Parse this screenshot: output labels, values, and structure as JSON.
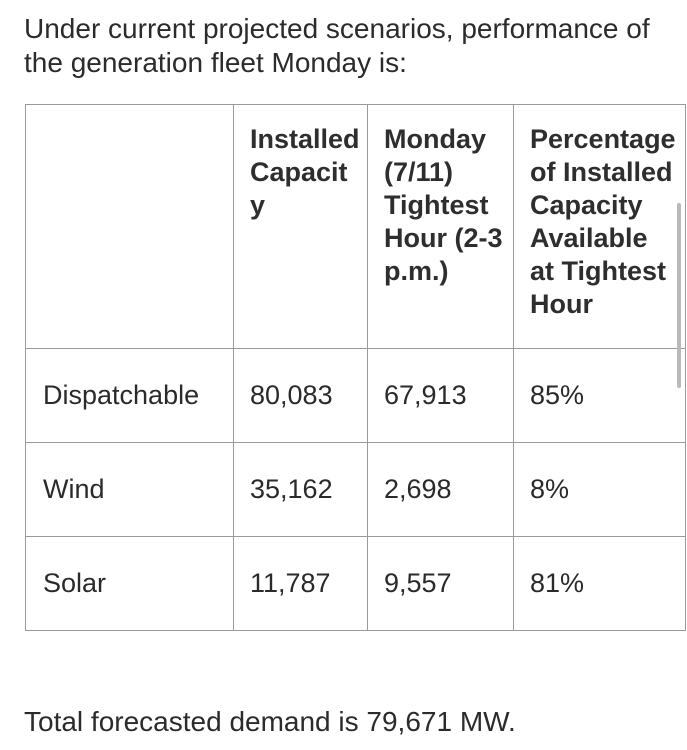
{
  "intro_text": "Under current projected scenarios, performance of the generation fleet Monday is:",
  "table": {
    "headers": [
      "",
      "Installed Capacity",
      "Monday (7/11) Tightest Hour (2-3 p.m.)",
      "Percentage of Installed Capacity Available at Tightest Hour"
    ],
    "rows": [
      {
        "label": "Dispatchable",
        "installed": "80,083",
        "monday": "67,913",
        "percentage": "85%"
      },
      {
        "label": "Wind",
        "installed": "35,162",
        "monday": "2,698",
        "percentage": "8%"
      },
      {
        "label": "Solar",
        "installed": "11,787",
        "monday": "9,557",
        "percentage": "81%"
      }
    ]
  },
  "footer_text": "Total forecasted demand is 79,671 MW."
}
